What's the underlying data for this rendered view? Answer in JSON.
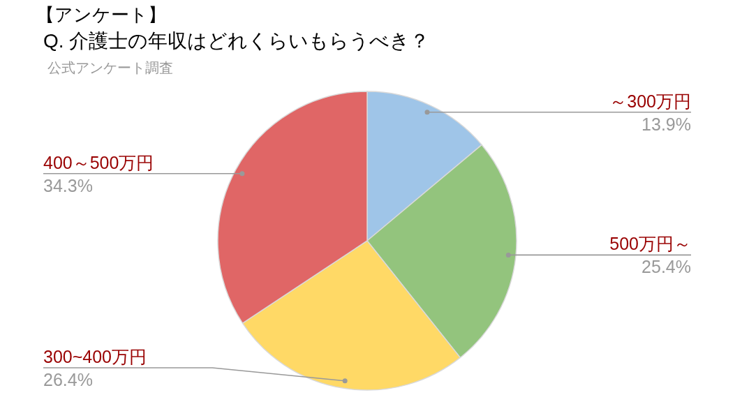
{
  "chart_data": {
    "type": "pie",
    "title": "【アンケート】\nQ. 介護士の年収はどれくらいもらうべき？",
    "subtitle": "公式アンケート調査",
    "categories": [
      "～300万円",
      "500万円～",
      "300~400万円",
      "400～500万円"
    ],
    "values": [
      13.9,
      25.4,
      26.4,
      34.3
    ],
    "value_labels": [
      "13.9%",
      "25.4%",
      "26.4%",
      "34.3%"
    ],
    "colors": [
      "#9fc5e8",
      "#93c47d",
      "#ffd966",
      "#e06666"
    ]
  }
}
